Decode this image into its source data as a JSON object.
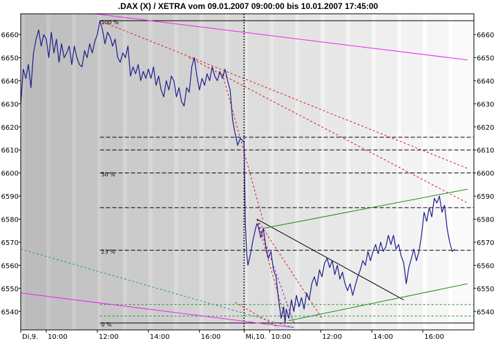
{
  "chart_data": {
    "type": "line",
    "title": ".DAX (X) / XETRA vom 09.01.2007 09:00:00 bis 10.01.2007 17:45:00",
    "xlabel": "",
    "ylabel": "",
    "ylim": [
      6532,
      6669
    ],
    "grid": true,
    "y_ticks": [
      "6540",
      "6550",
      "6560",
      "6570",
      "6580",
      "6590",
      "6600",
      "6610",
      "6620",
      "6630",
      "6640",
      "6650",
      "6660"
    ],
    "x_ticks": [
      {
        "label": "Di,9.",
        "t": 0.0
      },
      {
        "label": "10:00",
        "t": 1.0
      },
      {
        "label": "12:00",
        "t": 3.0
      },
      {
        "label": "14:00",
        "t": 5.0
      },
      {
        "label": "16:00",
        "t": 7.0
      },
      {
        "label": "Mi,10.",
        "t": 8.75
      },
      {
        "label": "10:00",
        "t": 9.75
      },
      {
        "label": "12:00",
        "t": 11.75
      },
      {
        "label": "14:00",
        "t": 13.75
      },
      {
        "label": "16:00",
        "t": 15.75
      }
    ],
    "series": [
      {
        "color": "#1c1c8c",
        "points": [
          [
            0.0,
            6630
          ],
          [
            0.1,
            6645
          ],
          [
            0.2,
            6641
          ],
          [
            0.3,
            6647
          ],
          [
            0.4,
            6637
          ],
          [
            0.5,
            6652
          ],
          [
            0.6,
            6658
          ],
          [
            0.7,
            6662
          ],
          [
            0.8,
            6655
          ],
          [
            0.9,
            6660
          ],
          [
            1.0,
            6658
          ],
          [
            1.1,
            6650
          ],
          [
            1.2,
            6661
          ],
          [
            1.3,
            6652
          ],
          [
            1.4,
            6658
          ],
          [
            1.5,
            6648
          ],
          [
            1.6,
            6656
          ],
          [
            1.7,
            6650
          ],
          [
            1.8,
            6652
          ],
          [
            1.9,
            6655
          ],
          [
            2.0,
            6647
          ],
          [
            2.1,
            6655
          ],
          [
            2.2,
            6650
          ],
          [
            2.3,
            6647
          ],
          [
            2.4,
            6646
          ],
          [
            2.5,
            6653
          ],
          [
            2.6,
            6650
          ],
          [
            2.7,
            6656
          ],
          [
            2.8,
            6652
          ],
          [
            2.9,
            6657
          ],
          [
            3.0,
            6660
          ],
          [
            3.1,
            6666
          ],
          [
            3.2,
            6662
          ],
          [
            3.3,
            6656
          ],
          [
            3.4,
            6661
          ],
          [
            3.5,
            6659
          ],
          [
            3.6,
            6655
          ],
          [
            3.7,
            6658
          ],
          [
            3.8,
            6650
          ],
          [
            3.9,
            6648
          ],
          [
            4.0,
            6652
          ],
          [
            4.1,
            6650
          ],
          [
            4.2,
            6655
          ],
          [
            4.3,
            6642
          ],
          [
            4.4,
            6646
          ],
          [
            4.5,
            6643
          ],
          [
            4.6,
            6647
          ],
          [
            4.7,
            6640
          ],
          [
            4.8,
            6644
          ],
          [
            4.9,
            6641
          ],
          [
            5.0,
            6645
          ],
          [
            5.1,
            6641
          ],
          [
            5.2,
            6646
          ],
          [
            5.3,
            6638
          ],
          [
            5.4,
            6642
          ],
          [
            5.5,
            6636
          ],
          [
            5.6,
            6633
          ],
          [
            5.7,
            6640
          ],
          [
            5.8,
            6636
          ],
          [
            5.9,
            6642
          ],
          [
            6.0,
            6640
          ],
          [
            6.1,
            6633
          ],
          [
            6.2,
            6637
          ],
          [
            6.3,
            6631
          ],
          [
            6.4,
            6629
          ],
          [
            6.5,
            6637
          ],
          [
            6.6,
            6635
          ],
          [
            6.7,
            6646
          ],
          [
            6.8,
            6650
          ],
          [
            6.9,
            6642
          ],
          [
            7.0,
            6636
          ],
          [
            7.1,
            6641
          ],
          [
            7.2,
            6638
          ],
          [
            7.3,
            6643
          ],
          [
            7.4,
            6640
          ],
          [
            7.5,
            6646
          ],
          [
            7.6,
            6642
          ],
          [
            7.7,
            6640
          ],
          [
            7.8,
            6644
          ],
          [
            7.9,
            6641
          ],
          [
            8.0,
            6645
          ],
          [
            8.1,
            6640
          ],
          [
            8.2,
            6636
          ],
          [
            8.3,
            6623
          ],
          [
            8.4,
            6617
          ],
          [
            8.5,
            6612
          ],
          [
            8.6,
            6615
          ],
          [
            8.7,
            6614
          ],
          [
            8.75,
            6613
          ],
          [
            8.8,
            6578
          ],
          [
            8.85,
            6565
          ],
          [
            8.9,
            6560
          ],
          [
            9.0,
            6565
          ],
          [
            9.1,
            6571
          ],
          [
            9.2,
            6576
          ],
          [
            9.25,
            6578
          ],
          [
            9.3,
            6577
          ],
          [
            9.4,
            6572
          ],
          [
            9.5,
            6576
          ],
          [
            9.6,
            6568
          ],
          [
            9.7,
            6563
          ],
          [
            9.8,
            6566
          ],
          [
            9.9,
            6558
          ],
          [
            10.0,
            6555
          ],
          [
            10.1,
            6545
          ],
          [
            10.2,
            6537
          ],
          [
            10.3,
            6542
          ],
          [
            10.35,
            6535
          ],
          [
            10.4,
            6541
          ],
          [
            10.5,
            6537
          ],
          [
            10.6,
            6545
          ],
          [
            10.7,
            6540
          ],
          [
            10.8,
            6547
          ],
          [
            10.9,
            6542
          ],
          [
            11.0,
            6546
          ],
          [
            11.1,
            6541
          ],
          [
            11.2,
            6548
          ],
          [
            11.3,
            6545
          ],
          [
            11.4,
            6552
          ],
          [
            11.5,
            6555
          ],
          [
            11.6,
            6551
          ],
          [
            11.7,
            6558
          ],
          [
            11.8,
            6555
          ],
          [
            11.9,
            6561
          ],
          [
            12.0,
            6563
          ],
          [
            12.1,
            6559
          ],
          [
            12.2,
            6562
          ],
          [
            12.3,
            6556
          ],
          [
            12.4,
            6560
          ],
          [
            12.5,
            6554
          ],
          [
            12.6,
            6557
          ],
          [
            12.7,
            6552
          ],
          [
            12.8,
            6549
          ],
          [
            12.9,
            6552
          ],
          [
            13.0,
            6547
          ],
          [
            13.1,
            6551
          ],
          [
            13.2,
            6555
          ],
          [
            13.3,
            6558
          ],
          [
            13.4,
            6562
          ],
          [
            13.5,
            6560
          ],
          [
            13.6,
            6566
          ],
          [
            13.7,
            6562
          ],
          [
            13.8,
            6566
          ],
          [
            13.9,
            6569
          ],
          [
            14.0,
            6565
          ],
          [
            14.1,
            6570
          ],
          [
            14.2,
            6566
          ],
          [
            14.3,
            6568
          ],
          [
            14.4,
            6573
          ],
          [
            14.5,
            6569
          ],
          [
            14.6,
            6573
          ],
          [
            14.7,
            6567
          ],
          [
            14.8,
            6569
          ],
          [
            14.9,
            6564
          ],
          [
            15.0,
            6561
          ],
          [
            15.1,
            6552
          ],
          [
            15.2,
            6559
          ],
          [
            15.3,
            6563
          ],
          [
            15.4,
            6567
          ],
          [
            15.5,
            6562
          ],
          [
            15.6,
            6566
          ],
          [
            15.7,
            6573
          ],
          [
            15.8,
            6583
          ],
          [
            15.9,
            6579
          ],
          [
            16.0,
            6585
          ],
          [
            16.1,
            6581
          ],
          [
            16.2,
            6589
          ],
          [
            16.3,
            6587
          ],
          [
            16.4,
            6590
          ],
          [
            16.5,
            6583
          ],
          [
            16.6,
            6586
          ],
          [
            16.7,
            6576
          ],
          [
            16.8,
            6570
          ],
          [
            16.9,
            6566
          ],
          [
            17.0,
            6567
          ]
        ]
      }
    ],
    "fib_levels": [
      {
        "label": "100 %",
        "y": 6666,
        "color": "#000000",
        "dash": "none"
      },
      {
        "label": "",
        "y": 6615.5,
        "color": "#000000",
        "dash": "6,3"
      },
      {
        "label": "",
        "y": 6610,
        "color": "#000000",
        "dash": "6,3"
      },
      {
        "label": "50 %",
        "y": 6600,
        "color": "#000000",
        "dash": "6,3"
      },
      {
        "label": "",
        "y": 6585,
        "color": "#000000",
        "dash": "6,3"
      },
      {
        "label": "23 %",
        "y": 6566.5,
        "color": "#000000",
        "dash": "6,3"
      },
      {
        "label": "",
        "y": 6543,
        "color": "#1a8c1a",
        "dash": "3,3"
      },
      {
        "label": "",
        "y": 6538,
        "color": "#1a8c1a",
        "dash": "3,3"
      },
      {
        "label": "0 %",
        "y": 6535,
        "color": "#000000",
        "dash": "none"
      }
    ],
    "trendlines": [
      {
        "color": "#ee22ee",
        "dash": "none",
        "p1": [
          2.9,
          6669
        ],
        "p2": [
          17.5,
          6649
        ]
      },
      {
        "color": "#ee22ee",
        "dash": "none",
        "p1": [
          0.0,
          6548
        ],
        "p2": [
          10.7,
          6533
        ]
      },
      {
        "color": "#2a9090",
        "dash": "3,3",
        "p1": [
          0.0,
          6567
        ],
        "p2": [
          10.7,
          6533
        ]
      },
      {
        "color": "#dd1111",
        "dash": "3,3",
        "p1": [
          3.1,
          6666
        ],
        "p2": [
          17.5,
          6602
        ]
      },
      {
        "color": "#dd1111",
        "dash": "3,3",
        "p1": [
          6.6,
          6650
        ],
        "p2": [
          17.5,
          6587
        ]
      },
      {
        "color": "#dd1111",
        "dash": "3,3",
        "p1": [
          7.9,
          6643
        ],
        "p2": [
          9.5,
          6579
        ]
      },
      {
        "color": "#dd1111",
        "dash": "3,3",
        "p1": [
          9.25,
          6580
        ],
        "p2": [
          11.8,
          6537
        ]
      },
      {
        "color": "#dd1111",
        "dash": "3,3",
        "p1": [
          9.25,
          6580
        ],
        "p2": [
          10.4,
          6535
        ]
      },
      {
        "color": "#dd1111",
        "dash": "3,3",
        "p1": [
          8.4,
          6544
        ],
        "p2": [
          10.1,
          6533
        ]
      },
      {
        "color": "#9922aa",
        "dash": "3,3",
        "p1": [
          9.25,
          6580
        ],
        "p2": [
          10.7,
          6535
        ]
      },
      {
        "color": "#000000",
        "dash": "none",
        "p1": [
          9.25,
          6580
        ],
        "p2": [
          15.0,
          6545
        ]
      },
      {
        "color": "#1a8c1a",
        "dash": "none",
        "p1": [
          9.5,
          6576
        ],
        "p2": [
          17.5,
          6593
        ]
      },
      {
        "color": "#1a8c1a",
        "dash": "none",
        "p1": [
          10.5,
          6536
        ],
        "p2": [
          17.5,
          6552
        ]
      }
    ],
    "session_divider_t": 8.75
  }
}
